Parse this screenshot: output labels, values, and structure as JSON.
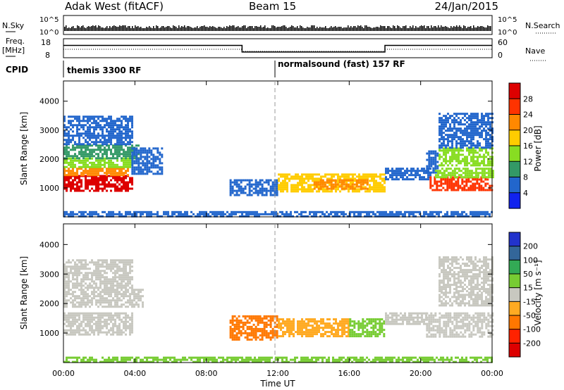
{
  "chart_data": {
    "type": "heatmap",
    "title": {
      "radar": "Adak West (fitACF)",
      "beam": "Beam 15",
      "date": "24/Jan/2015"
    },
    "top_panels": {
      "nsky_label": "N.Sky",
      "nsearch_label": "N.Search",
      "nsky_ticks": [
        "10^5",
        "10^0"
      ],
      "nsearch_ticks": [
        "10^5",
        "10^0"
      ],
      "freq_label_1": "Freq.",
      "freq_label_2": "[MHz]",
      "freq_ticks": [
        "18",
        "8"
      ],
      "nave_label": "Nave",
      "nave_ticks": [
        "60",
        "0"
      ],
      "cpid_label": "CPID",
      "cpid_segments": [
        {
          "label": "themis 3300 RF",
          "start_hr": 0
        },
        {
          "label": "normalsound (fast) 157 RF",
          "start_hr": 12
        }
      ],
      "freq_steps": [
        {
          "x": 0,
          "mhz": 14.5
        },
        {
          "x": 10,
          "mhz": 11
        },
        {
          "x": 12,
          "mhz": 11
        },
        {
          "x": 18,
          "mhz": 14.5
        },
        {
          "x": 24,
          "mhz": 14.5
        }
      ]
    },
    "xaxis": {
      "label": "Time UT",
      "range": [
        0,
        24
      ],
      "ticks": [
        {
          "v": 0,
          "label": "00:00"
        },
        {
          "v": 4,
          "label": "04:00"
        },
        {
          "v": 8,
          "label": "08:00"
        },
        {
          "v": 12,
          "label": "12:00"
        },
        {
          "v": 16,
          "label": "16:00"
        },
        {
          "v": 20,
          "label": "20:00"
        },
        {
          "v": 24,
          "label": "00:00"
        }
      ]
    },
    "yaxis": {
      "label": "Slant Range [km]",
      "range": [
        0,
        4700
      ],
      "ticks": [
        {
          "v": 1000,
          "label": "1000"
        },
        {
          "v": 2000,
          "label": "2000"
        },
        {
          "v": 3000,
          "label": "3000"
        },
        {
          "v": 4000,
          "label": "4000"
        }
      ]
    },
    "power": {
      "colorbar_label": "Power [dB]",
      "levels": [
        "28",
        "24",
        "20",
        "16",
        "12",
        "8",
        "4"
      ],
      "colors": [
        "#dd0000",
        "#ff3300",
        "#ff8800",
        "#ffcc00",
        "#88dd22",
        "#339966",
        "#2266cc",
        "#1122ee"
      ],
      "regions": [
        {
          "x": [
            0.0,
            3.8
          ],
          "r": [
            900,
            1450
          ],
          "c": 0
        },
        {
          "x": [
            0.0,
            3.6
          ],
          "r": [
            1450,
            1700
          ],
          "c": 2
        },
        {
          "x": [
            0.0,
            3.8
          ],
          "r": [
            1700,
            2050
          ],
          "c": 4
        },
        {
          "x": [
            0.0,
            4.2
          ],
          "r": [
            2050,
            2500
          ],
          "c": 5
        },
        {
          "x": [
            0.0,
            3.8
          ],
          "r": [
            2500,
            3500
          ],
          "c": 6
        },
        {
          "x": [
            3.8,
            5.5
          ],
          "r": [
            1500,
            2400
          ],
          "c": 6
        },
        {
          "x": [
            9.3,
            12.0
          ],
          "r": [
            750,
            1300
          ],
          "c": 6
        },
        {
          "x": [
            12.0,
            18.0
          ],
          "r": [
            900,
            1500
          ],
          "c": 3
        },
        {
          "x": [
            14.0,
            17.0
          ],
          "r": [
            950,
            1300
          ],
          "c": 2
        },
        {
          "x": [
            18.0,
            20.5
          ],
          "r": [
            1300,
            1700
          ],
          "c": 6
        },
        {
          "x": [
            20.3,
            21.0
          ],
          "r": [
            1500,
            2300
          ],
          "c": 6
        },
        {
          "x": [
            20.5,
            24.0
          ],
          "r": [
            900,
            1400
          ],
          "c": 1
        },
        {
          "x": [
            20.8,
            24.0
          ],
          "r": [
            1400,
            1700
          ],
          "c": 4
        },
        {
          "x": [
            21.0,
            24.0
          ],
          "r": [
            1800,
            2400
          ],
          "c": 4
        },
        {
          "x": [
            21.0,
            24.0
          ],
          "r": [
            2400,
            3600
          ],
          "c": 6
        },
        {
          "x": [
            0.0,
            24.0
          ],
          "r": [
            0,
            200
          ],
          "c": 6
        }
      ]
    },
    "velocity": {
      "colorbar_label": "Velocity [m s⁻¹]",
      "levels": [
        "200",
        "100",
        "50",
        "15",
        "-15",
        "-50",
        "-100",
        "-200"
      ],
      "colors": [
        "#2233cc",
        "#336699",
        "#33aa55",
        "#77cc33",
        "#c8c8c0",
        "#ffaa22",
        "#ff7700",
        "#ff2200",
        "#dd0000"
      ],
      "regions": [
        {
          "x": [
            0.0,
            3.8
          ],
          "r": [
            950,
            1700
          ],
          "c": 4
        },
        {
          "x": [
            0.0,
            4.5
          ],
          "r": [
            1900,
            2500
          ],
          "c": 4
        },
        {
          "x": [
            0.0,
            3.8
          ],
          "r": [
            2500,
            3500
          ],
          "c": 4
        },
        {
          "x": [
            9.3,
            12.0
          ],
          "r": [
            800,
            1600
          ],
          "c": 6
        },
        {
          "x": [
            12.0,
            16.0
          ],
          "r": [
            900,
            1500
          ],
          "c": 5
        },
        {
          "x": [
            16.0,
            18.0
          ],
          "r": [
            900,
            1500
          ],
          "c": 3
        },
        {
          "x": [
            18.0,
            20.3
          ],
          "r": [
            1300,
            1700
          ],
          "c": 4
        },
        {
          "x": [
            20.3,
            24.0
          ],
          "r": [
            900,
            1700
          ],
          "c": 4
        },
        {
          "x": [
            21.0,
            24.0
          ],
          "r": [
            1900,
            2400
          ],
          "c": 4
        },
        {
          "x": [
            21.0,
            24.0
          ],
          "r": [
            2400,
            3600
          ],
          "c": 4
        },
        {
          "x": [
            0.0,
            24.0
          ],
          "r": [
            0,
            200
          ],
          "c": 3
        }
      ]
    }
  }
}
